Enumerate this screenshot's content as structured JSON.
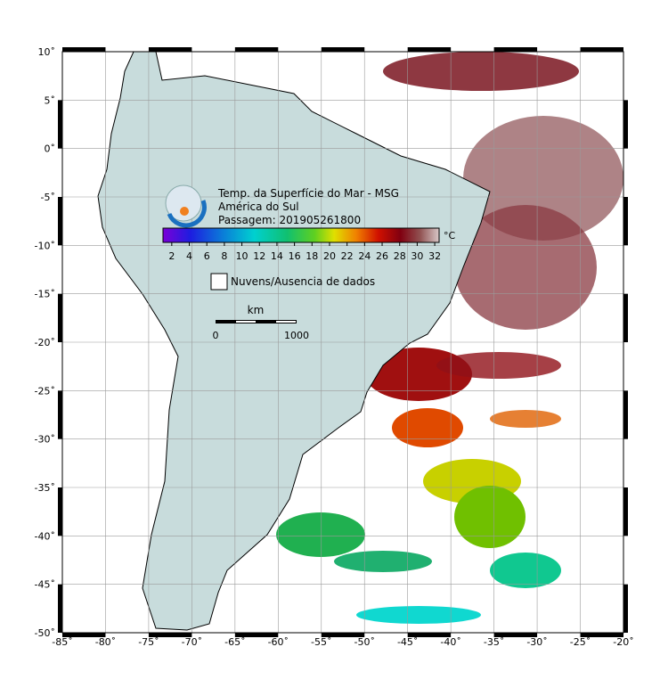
{
  "title": [
    "Temp. da Superfície do Mar - MSG",
    "América do Sul",
    "Passagem: 201905261800"
  ],
  "colorbar": {
    "unit": "°C",
    "range": [
      1,
      32.5
    ],
    "ticks": [
      2,
      4,
      6,
      8,
      10,
      12,
      14,
      16,
      18,
      20,
      22,
      24,
      26,
      28,
      30,
      32
    ]
  },
  "legend": "Nuvens/Ausencia de dados",
  "scale": {
    "unit": "km",
    "labels": [
      "0",
      "1000"
    ]
  },
  "map": {
    "lonlim": [
      -85,
      -20
    ],
    "latlim": [
      10,
      -50
    ],
    "lon_ticks": [
      {
        "value": -85,
        "label": "-85˚"
      },
      {
        "value": -80,
        "label": "-80˚"
      },
      {
        "value": -75,
        "label": "-75˚"
      },
      {
        "value": -70,
        "label": "-70˚"
      },
      {
        "value": -65,
        "label": "-65˚"
      },
      {
        "value": -60,
        "label": "-60˚"
      },
      {
        "value": -55,
        "label": "-55˚"
      },
      {
        "value": -50,
        "label": "-50˚"
      },
      {
        "value": -45,
        "label": "-45˚"
      },
      {
        "value": -40,
        "label": "-40˚"
      },
      {
        "value": -35,
        "label": "-35˚"
      },
      {
        "value": -30,
        "label": "-30˚"
      },
      {
        "value": -25,
        "label": "-25˚"
      },
      {
        "value": -20,
        "label": "-20˚"
      }
    ],
    "lat_ticks": [
      {
        "value": 10,
        "label": "10˚"
      },
      {
        "value": 5,
        "label": "5˚"
      },
      {
        "value": 0,
        "label": "0˚"
      },
      {
        "value": -5,
        "label": "-5˚"
      },
      {
        "value": -10,
        "label": "-10˚"
      },
      {
        "value": -15,
        "label": "-15˚"
      },
      {
        "value": -20,
        "label": "-20˚"
      },
      {
        "value": -25,
        "label": "-25˚"
      },
      {
        "value": -30,
        "label": "-30˚"
      },
      {
        "value": -35,
        "label": "-35˚"
      },
      {
        "value": -40,
        "label": "-40˚"
      },
      {
        "value": -45,
        "label": "-45˚"
      },
      {
        "value": -50,
        "label": "-50˚"
      }
    ]
  }
}
